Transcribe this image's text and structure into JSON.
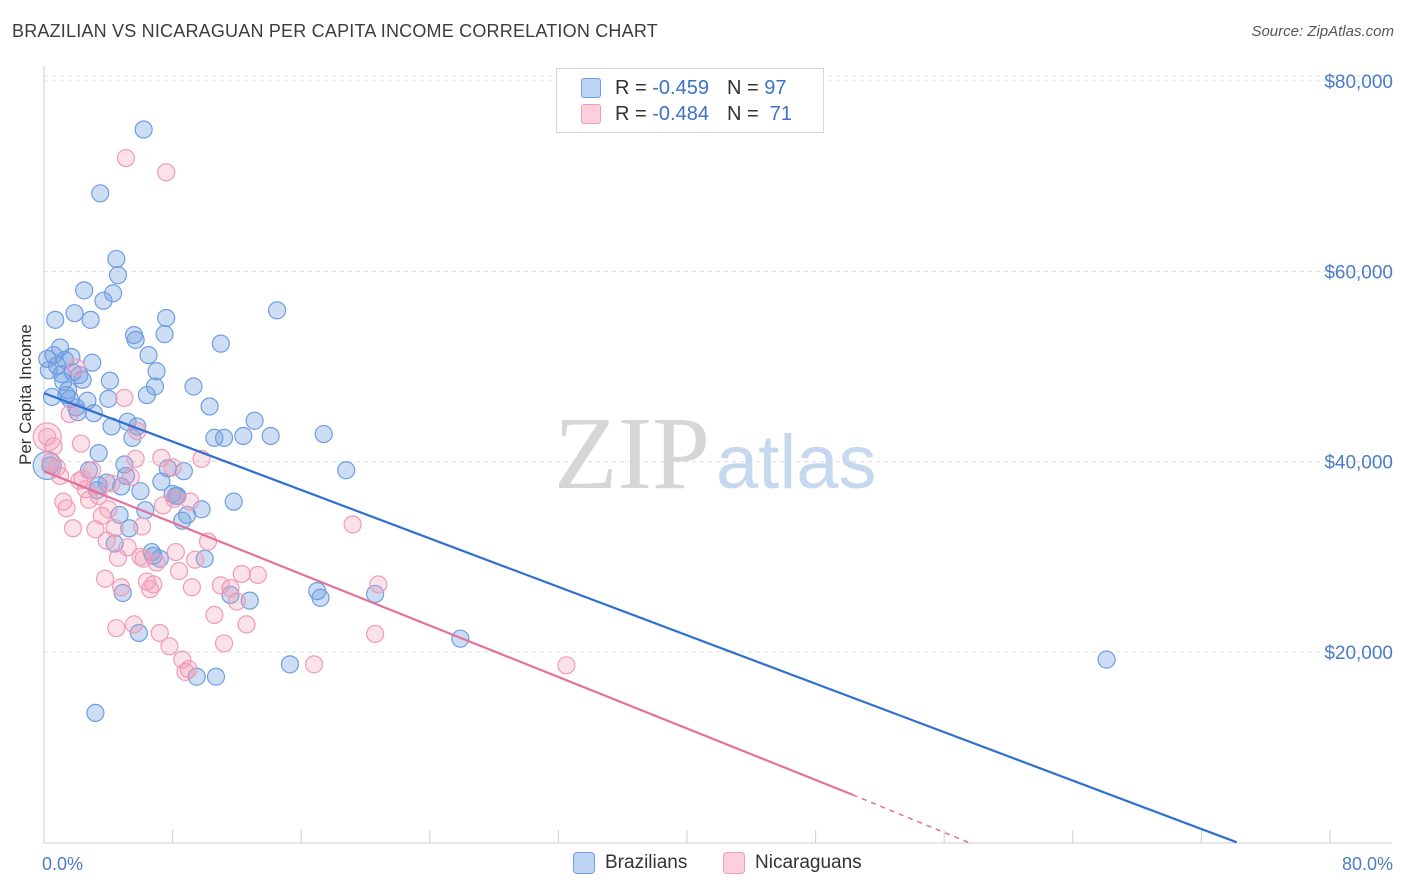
{
  "title": "BRAZILIAN VS NICARAGUAN PER CAPITA INCOME CORRELATION CHART",
  "source": "Source: ZipAtlas.com",
  "watermark": {
    "zip": "ZIP",
    "atlas": "atlas"
  },
  "colors": {
    "brazilians": "#6f9ee0",
    "brazilians_line": "#2f6fd0",
    "nicaraguans": "#f19bb6",
    "nicaraguans_line": "#e4719a",
    "tick_text": "#4a7cc8"
  },
  "legend": {
    "rows": [
      {
        "r_label": "R =",
        "r_value": "-0.459",
        "n_label": "N =",
        "n_value": "97"
      },
      {
        "r_label": "R =",
        "r_value": "-0.484",
        "n_label": "N =",
        "n_value": "71"
      }
    ]
  },
  "bottom_legend": [
    "Brazilians",
    "Nicaraguans"
  ],
  "chart_data": {
    "type": "scatter",
    "title": "BRAZILIAN VS NICARAGUAN PER CAPITA INCOME CORRELATION CHART",
    "xlabel": "",
    "ylabel": "Per Capita Income",
    "xlim": [
      0,
      80
    ],
    "ylim": [
      0,
      82000
    ],
    "x_tick_labels": [
      "0.0%",
      "80.0%"
    ],
    "y_ticks": [
      20000,
      40000,
      60000,
      80000
    ],
    "y_tick_labels": [
      "$20,000",
      "$40,000",
      "$60,000",
      "$80,000"
    ],
    "grid": true,
    "series": [
      {
        "name": "Brazilians",
        "R": -0.459,
        "N": 97,
        "trend": {
          "x0": 0,
          "y0": 47200,
          "x1": 74.2,
          "y1": 0
        },
        "points": [
          [
            0.2,
            50800
          ],
          [
            0.3,
            49600
          ],
          [
            0.4,
            39600
          ],
          [
            0.5,
            46800
          ],
          [
            0.6,
            51200
          ],
          [
            0.7,
            54900
          ],
          [
            0.8,
            50100
          ],
          [
            1.0,
            52000
          ],
          [
            1.1,
            49200
          ],
          [
            1.2,
            48400
          ],
          [
            1.3,
            50700
          ],
          [
            1.5,
            47500
          ],
          [
            1.6,
            46600
          ],
          [
            1.7,
            51000
          ],
          [
            1.8,
            49400
          ],
          [
            1.9,
            55600
          ],
          [
            2.0,
            45700
          ],
          [
            2.1,
            45200
          ],
          [
            2.2,
            49100
          ],
          [
            2.4,
            48600
          ],
          [
            2.5,
            58000
          ],
          [
            2.7,
            46400
          ],
          [
            2.8,
            39100
          ],
          [
            2.9,
            54900
          ],
          [
            3.0,
            50400
          ],
          [
            3.1,
            45100
          ],
          [
            3.3,
            37000
          ],
          [
            3.4,
            40900
          ],
          [
            3.5,
            68200
          ],
          [
            3.7,
            56900
          ],
          [
            3.9,
            37800
          ],
          [
            4.0,
            46600
          ],
          [
            4.1,
            48500
          ],
          [
            4.2,
            43700
          ],
          [
            4.3,
            57700
          ],
          [
            4.4,
            31400
          ],
          [
            4.5,
            61300
          ],
          [
            4.6,
            59600
          ],
          [
            4.7,
            34400
          ],
          [
            4.8,
            37400
          ],
          [
            4.9,
            26200
          ],
          [
            5.0,
            39700
          ],
          [
            5.1,
            38500
          ],
          [
            5.3,
            33000
          ],
          [
            5.5,
            42500
          ],
          [
            5.6,
            53300
          ],
          [
            5.7,
            52800
          ],
          [
            5.8,
            43700
          ],
          [
            5.9,
            22000
          ],
          [
            6.0,
            36900
          ],
          [
            6.2,
            74900
          ],
          [
            6.3,
            34900
          ],
          [
            6.4,
            47000
          ],
          [
            6.5,
            51200
          ],
          [
            6.7,
            30500
          ],
          [
            6.9,
            47900
          ],
          [
            7.0,
            49500
          ],
          [
            7.2,
            29800
          ],
          [
            7.3,
            37900
          ],
          [
            7.5,
            53400
          ],
          [
            7.6,
            55100
          ],
          [
            7.7,
            39300
          ],
          [
            8.0,
            36600
          ],
          [
            8.2,
            36400
          ],
          [
            8.6,
            33800
          ],
          [
            8.7,
            39000
          ],
          [
            8.9,
            34400
          ],
          [
            9.3,
            47900
          ],
          [
            9.5,
            17400
          ],
          [
            9.8,
            35000
          ],
          [
            10.0,
            29800
          ],
          [
            10.3,
            45800
          ],
          [
            10.6,
            42500
          ],
          [
            11.0,
            52400
          ],
          [
            11.2,
            42500
          ],
          [
            11.6,
            26000
          ],
          [
            11.8,
            35800
          ],
          [
            12.8,
            25400
          ],
          [
            13.1,
            44300
          ],
          [
            14.1,
            42700
          ],
          [
            14.5,
            55900
          ],
          [
            15.3,
            18700
          ],
          [
            17.0,
            26400
          ],
          [
            17.2,
            25700
          ],
          [
            17.4,
            42900
          ],
          [
            18.8,
            39100
          ],
          [
            20.6,
            26100
          ],
          [
            25.9,
            21400
          ],
          [
            3.2,
            13600
          ],
          [
            3.4,
            37500
          ],
          [
            5.2,
            44200
          ],
          [
            6.8,
            30100
          ],
          [
            8.3,
            36400
          ],
          [
            10.7,
            17400
          ],
          [
            12.4,
            42700
          ],
          [
            1.4,
            47000
          ],
          [
            66.1,
            19200
          ]
        ]
      },
      {
        "name": "Nicaraguans",
        "R": -0.484,
        "N": 71,
        "trend": {
          "x0": 0,
          "y0": 39000,
          "x1": 50.3,
          "y1": 5000
        },
        "dashed_extension": {
          "x0": 50.3,
          "y0": 5000,
          "x1": 57.5,
          "y1": 0
        },
        "points": [
          [
            0.2,
            42600
          ],
          [
            0.4,
            40000
          ],
          [
            0.6,
            41600
          ],
          [
            0.8,
            39400
          ],
          [
            1.0,
            38500
          ],
          [
            1.2,
            35800
          ],
          [
            1.4,
            35100
          ],
          [
            1.6,
            45000
          ],
          [
            1.8,
            33000
          ],
          [
            2.0,
            49900
          ],
          [
            2.2,
            38000
          ],
          [
            2.4,
            38200
          ],
          [
            2.6,
            37100
          ],
          [
            2.8,
            36000
          ],
          [
            3.0,
            39100
          ],
          [
            3.2,
            32900
          ],
          [
            3.4,
            36400
          ],
          [
            3.6,
            34300
          ],
          [
            3.8,
            27700
          ],
          [
            4.0,
            35000
          ],
          [
            4.2,
            37700
          ],
          [
            4.4,
            33000
          ],
          [
            4.6,
            29900
          ],
          [
            4.8,
            26800
          ],
          [
            5.0,
            46700
          ],
          [
            5.2,
            31000
          ],
          [
            5.4,
            38400
          ],
          [
            5.6,
            22900
          ],
          [
            5.8,
            43200
          ],
          [
            6.0,
            30000
          ],
          [
            6.2,
            29800
          ],
          [
            6.4,
            27400
          ],
          [
            6.6,
            26600
          ],
          [
            6.8,
            27100
          ],
          [
            7.0,
            29400
          ],
          [
            7.2,
            22000
          ],
          [
            7.4,
            35400
          ],
          [
            7.6,
            70400
          ],
          [
            7.8,
            20600
          ],
          [
            8.0,
            39400
          ],
          [
            8.2,
            30500
          ],
          [
            8.4,
            28500
          ],
          [
            8.6,
            19200
          ],
          [
            8.8,
            17900
          ],
          [
            9.0,
            18200
          ],
          [
            9.2,
            26800
          ],
          [
            9.4,
            29700
          ],
          [
            9.8,
            40300
          ],
          [
            10.2,
            31600
          ],
          [
            10.6,
            23900
          ],
          [
            11.0,
            27000
          ],
          [
            11.2,
            20900
          ],
          [
            11.6,
            26700
          ],
          [
            12.0,
            25300
          ],
          [
            12.3,
            28200
          ],
          [
            12.6,
            22900
          ],
          [
            13.3,
            28100
          ],
          [
            16.8,
            18700
          ],
          [
            19.2,
            33400
          ],
          [
            20.6,
            21900
          ],
          [
            20.8,
            27100
          ],
          [
            32.5,
            18600
          ],
          [
            5.1,
            71900
          ],
          [
            3.9,
            31700
          ],
          [
            6.1,
            33200
          ],
          [
            7.3,
            40400
          ],
          [
            8.1,
            36100
          ],
          [
            5.7,
            40300
          ],
          [
            9.1,
            35800
          ],
          [
            2.3,
            41900
          ],
          [
            4.5,
            22500
          ]
        ]
      }
    ]
  }
}
